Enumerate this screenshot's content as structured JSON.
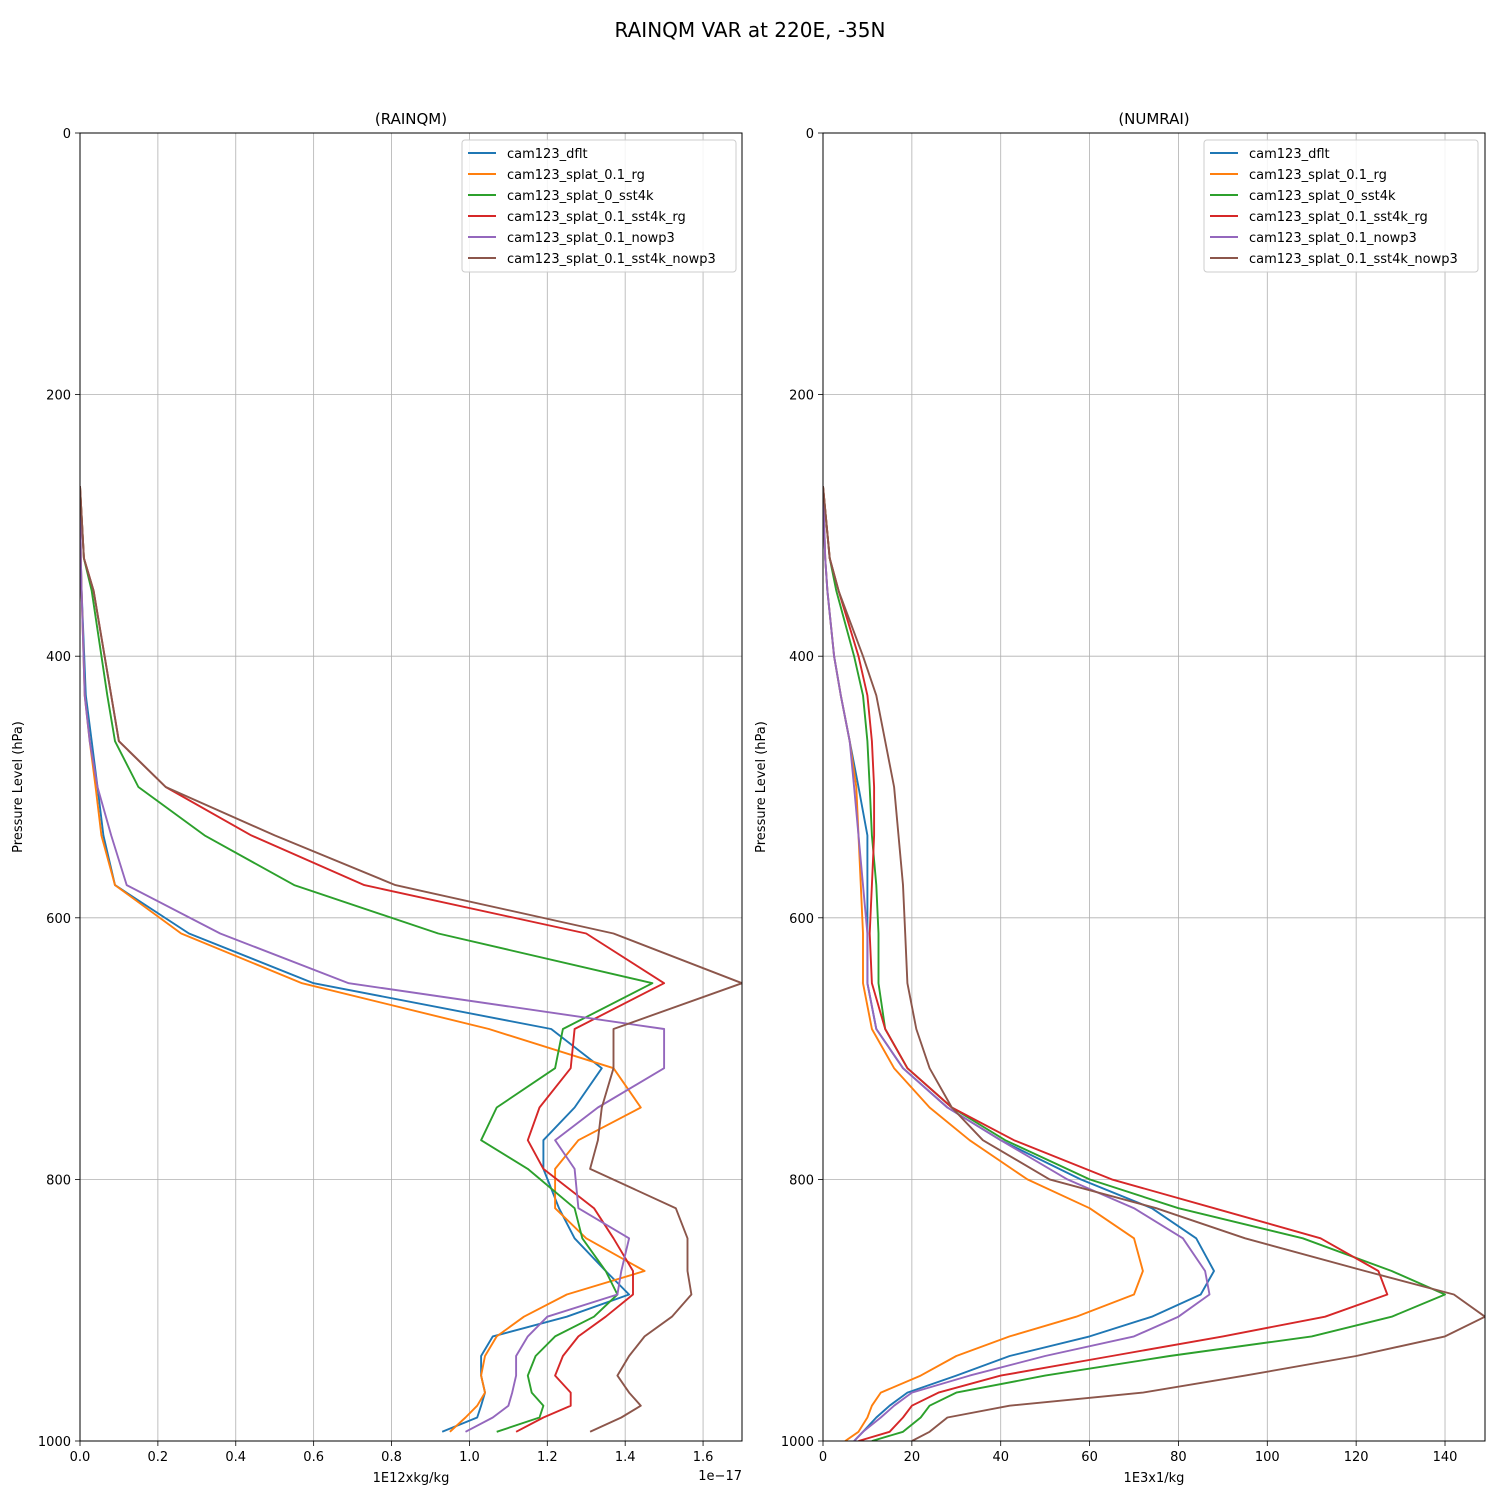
{
  "chart_data": {
    "type": "line",
    "title": "RAINQM VAR at 220E, -35N",
    "colors": [
      "#1f77b4",
      "#ff7f0e",
      "#2ca02c",
      "#d62728",
      "#9467bd",
      "#8c564b"
    ],
    "legend_position": "top-right",
    "grid": true,
    "panels": [
      {
        "title": "(RAINQM)",
        "xlabel": "1E12xkg/kg",
        "ylabel": "Pressure Level (hPa)",
        "x_offset_label": "1e−17",
        "xlim": [
          0,
          1.7
        ],
        "ylim": [
          1000,
          0
        ],
        "xticks": [
          0,
          0.2,
          0.4,
          0.6,
          0.8,
          1.0,
          1.2,
          1.4,
          1.6
        ],
        "xtick_labels": [
          "0.0",
          "0.2",
          "0.4",
          "0.6",
          "0.8",
          "1.0",
          "1.2",
          "1.4",
          "1.6"
        ],
        "yticks": [
          0,
          200,
          400,
          600,
          800,
          1000
        ],
        "ytick_labels": [
          "0",
          "200",
          "400",
          "600",
          "800",
          "1000"
        ],
        "levels": [
          270,
          325,
          350,
          430,
          465,
          500,
          537,
          575,
          612,
          650,
          685,
          715,
          745,
          770,
          792,
          822,
          845,
          870,
          888,
          905,
          920,
          935,
          950,
          963,
          973,
          982,
          993
        ],
        "series": [
          {
            "name": "cam123_dflt",
            "values": [
              0,
              0.002,
              0.004,
              0.015,
              0.03,
              0.045,
              0.06,
              0.09,
              0.28,
              0.6,
              1.21,
              1.34,
              1.27,
              1.19,
              1.19,
              1.23,
              1.27,
              1.35,
              1.41,
              1.25,
              1.06,
              1.03,
              1.03,
              1.04,
              1.03,
              1.02,
              0.93
            ]
          },
          {
            "name": "cam123_splat_0.1_rg",
            "values": [
              0,
              0.002,
              0.004,
              0.012,
              0.025,
              0.04,
              0.055,
              0.09,
              0.26,
              0.57,
              1.05,
              1.37,
              1.44,
              1.28,
              1.22,
              1.22,
              1.3,
              1.45,
              1.25,
              1.14,
              1.07,
              1.04,
              1.03,
              1.04,
              1.02,
              0.99,
              0.95
            ]
          },
          {
            "name": "cam123_splat_0_sst4k",
            "values": [
              0,
              0.01,
              0.03,
              0.07,
              0.09,
              0.15,
              0.32,
              0.55,
              0.92,
              1.47,
              1.24,
              1.22,
              1.07,
              1.03,
              1.15,
              1.27,
              1.29,
              1.35,
              1.38,
              1.32,
              1.22,
              1.17,
              1.15,
              1.16,
              1.19,
              1.18,
              1.07
            ]
          },
          {
            "name": "cam123_splat_0.1_sst4k_rg",
            "values": [
              0,
              0.01,
              0.035,
              0.08,
              0.1,
              0.22,
              0.44,
              0.73,
              1.3,
              1.5,
              1.27,
              1.26,
              1.18,
              1.15,
              1.19,
              1.32,
              1.37,
              1.42,
              1.42,
              1.35,
              1.28,
              1.24,
              1.22,
              1.26,
              1.26,
              1.19,
              1.12
            ]
          },
          {
            "name": "cam123_splat_0.1_nowp3",
            "values": [
              0,
              0.002,
              0.004,
              0.012,
              0.025,
              0.045,
              0.08,
              0.12,
              0.36,
              0.69,
              1.5,
              1.5,
              1.33,
              1.22,
              1.27,
              1.28,
              1.41,
              1.39,
              1.38,
              1.2,
              1.15,
              1.12,
              1.12,
              1.11,
              1.1,
              1.06,
              0.99
            ]
          },
          {
            "name": "cam123_splat_0.1_sst4k_nowp3",
            "values": [
              0,
              0.01,
              0.035,
              0.08,
              0.1,
              0.22,
              0.5,
              0.81,
              1.37,
              1.7,
              1.37,
              1.37,
              1.34,
              1.33,
              1.31,
              1.53,
              1.56,
              1.56,
              1.57,
              1.52,
              1.45,
              1.41,
              1.38,
              1.41,
              1.44,
              1.39,
              1.31
            ]
          }
        ]
      },
      {
        "title": "(NUMRAI)",
        "xlabel": "1E3x1/kg",
        "ylabel": "Pressure Level (hPa)",
        "x_offset_label": "",
        "xlim": [
          0,
          149
        ],
        "ylim": [
          1000,
          0
        ],
        "xticks": [
          0,
          20,
          40,
          60,
          80,
          100,
          120,
          140
        ],
        "xtick_labels": [
          "0",
          "20",
          "40",
          "60",
          "80",
          "100",
          "120",
          "140"
        ],
        "yticks": [
          0,
          200,
          400,
          600,
          800,
          1000
        ],
        "ytick_labels": [
          "0",
          "200",
          "400",
          "600",
          "800",
          "1000"
        ],
        "levels": [
          270,
          325,
          350,
          400,
          430,
          465,
          500,
          537,
          575,
          612,
          650,
          685,
          715,
          745,
          770,
          800,
          822,
          845,
          870,
          888,
          905,
          920,
          935,
          950,
          963,
          973,
          982,
          993,
          1000
        ],
        "series": [
          {
            "name": "cam123_dflt",
            "values": [
              0,
              0.5,
              1,
              2.5,
              4,
              6,
              8,
              10,
              10,
              10,
              10,
              12,
              18,
              28,
              40,
              58,
              74,
              84,
              88,
              85,
              74,
              60,
              42,
              30,
              19,
              15,
              12,
              9,
              7
            ]
          },
          {
            "name": "cam123_splat_0.1_rg",
            "values": [
              0,
              0.5,
              1,
              2.5,
              4,
              6,
              7.5,
              8,
              8.5,
              9,
              9,
              11,
              16,
              24,
              33,
              46,
              60,
              70,
              72,
              70,
              57,
              42,
              30,
              22,
              13,
              11,
              10,
              8,
              5
            ]
          },
          {
            "name": "cam123_splat_0_sst4k",
            "values": [
              0,
              1.5,
              3,
              7,
              9,
              10,
              10.5,
              11,
              12,
              12.5,
              12.5,
              14,
              19,
              29,
              41,
              60,
              80,
              108,
              128,
              140,
              128,
              110,
              78,
              50,
              30,
              24,
              22,
              18,
              11
            ]
          },
          {
            "name": "cam123_splat_0.1_sst4k_rg",
            "values": [
              0,
              1.5,
              3.5,
              8,
              10,
              11,
              11.5,
              11.5,
              11,
              10.5,
              11,
              14,
              19,
              29,
              43,
              65,
              88,
              112,
              125,
              127,
              113,
              90,
              65,
              40,
              26,
              20,
              18,
              15,
              8
            ]
          },
          {
            "name": "cam123_splat_0.1_nowp3",
            "values": [
              0,
              0.5,
              1,
              2.5,
              4,
              6,
              7,
              8,
              9,
              10,
              10,
              12,
              18,
              28,
              40,
              55,
              70,
              81,
              86,
              87,
              80,
              70,
              50,
              33,
              20,
              16,
              13,
              9,
              7
            ]
          },
          {
            "name": "cam123_splat_0.1_sst4k_nowp3",
            "values": [
              0,
              1.5,
              3.5,
              9,
              12,
              14,
              16,
              17,
              18,
              18.5,
              19,
              21,
              24,
              29,
              36,
              51,
              75,
              95,
              122,
              142,
              149,
              140,
              120,
              95,
              72,
              42,
              28,
              24,
              20
            ]
          }
        ]
      }
    ]
  }
}
